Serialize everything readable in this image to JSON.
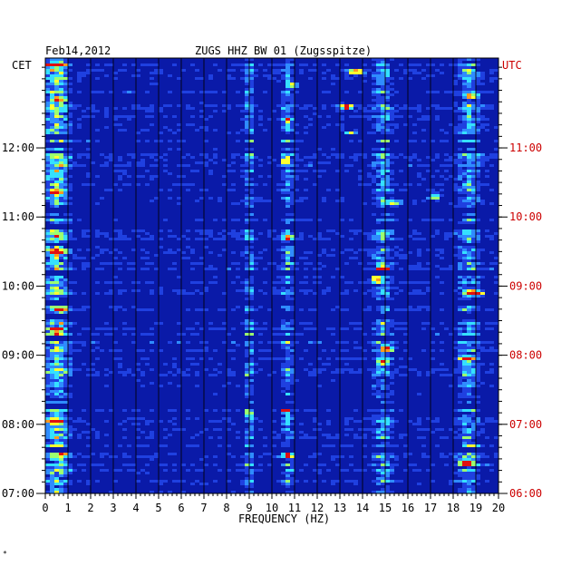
{
  "header": {
    "date": "Feb14,2012",
    "station": "ZUGS HHZ BW 01 (Zugsspitze)"
  },
  "left_zone_label": "CET",
  "right_zone_label": "UTC",
  "corner_mark": "*",
  "colors": {
    "background": "#ffffff",
    "utc_text": "#cc0000",
    "spectrogram_base": "#0a1aa8",
    "gridline": "#000000"
  },
  "chart_data": {
    "type": "heatmap",
    "xlabel": "FREQUENCY (HZ)",
    "xlim": [
      0,
      20
    ],
    "x_ticks": [
      0,
      1,
      2,
      3,
      4,
      5,
      6,
      7,
      8,
      9,
      10,
      11,
      12,
      13,
      14,
      15,
      16,
      17,
      18,
      19,
      20
    ],
    "x_tick_labels": [
      "0",
      "1",
      "2",
      "3",
      "4",
      "5",
      "6",
      "7",
      "8",
      "9",
      "10",
      "11",
      "12",
      "13",
      "14",
      "15",
      "16",
      "17",
      "18",
      "19",
      "20"
    ],
    "time_range_cet_hours": [
      7.0,
      13.3
    ],
    "cet_ticks": [
      {
        "hour": 7,
        "label": "07:00"
      },
      {
        "hour": 8,
        "label": "08:00"
      },
      {
        "hour": 9,
        "label": "09:00"
      },
      {
        "hour": 10,
        "label": "10:00"
      },
      {
        "hour": 11,
        "label": "11:00"
      },
      {
        "hour": 12,
        "label": "12:00"
      }
    ],
    "utc_ticks": [
      {
        "hour": 7,
        "label": "06:00"
      },
      {
        "hour": 8,
        "label": "07:00"
      },
      {
        "hour": 9,
        "label": "08:00"
      },
      {
        "hour": 10,
        "label": "09:00"
      },
      {
        "hour": 11,
        "label": "10:00"
      },
      {
        "hour": 12,
        "label": "11:00"
      }
    ],
    "colormap": [
      "#08108f",
      "#0a1aa8",
      "#1f40e0",
      "#2f8cff",
      "#35e0ff",
      "#9cff70",
      "#ffff30",
      "#ff9a20",
      "#e01010"
    ],
    "persistent_bands_hz": [
      {
        "center": 0.5,
        "width": 0.8,
        "intensity": 0.55
      },
      {
        "center": 9.0,
        "width": 0.3,
        "intensity": 0.35
      },
      {
        "center": 10.7,
        "width": 0.4,
        "intensity": 0.32
      },
      {
        "center": 14.9,
        "width": 0.6,
        "intensity": 0.35
      },
      {
        "center": 18.7,
        "width": 0.7,
        "intensity": 0.35
      }
    ],
    "bursts": [
      {
        "hour": 7.45,
        "f": 18.6,
        "df": 0.5,
        "intensity": 0.95
      },
      {
        "hour": 7.65,
        "f": 18.9,
        "df": 0.5,
        "intensity": 0.95
      },
      {
        "hour": 7.55,
        "f": 10.7,
        "df": 0.3,
        "intensity": 0.8
      },
      {
        "hour": 7.6,
        "f": 0.7,
        "df": 0.6,
        "intensity": 0.85
      },
      {
        "hour": 8.05,
        "f": 0.4,
        "df": 0.5,
        "intensity": 0.85
      },
      {
        "hour": 8.15,
        "f": 9.0,
        "df": 0.3,
        "intensity": 0.8
      },
      {
        "hour": 8.2,
        "f": 10.6,
        "df": 0.3,
        "intensity": 0.75
      },
      {
        "hour": 8.9,
        "f": 14.9,
        "df": 0.4,
        "intensity": 0.8
      },
      {
        "hour": 8.95,
        "f": 18.6,
        "df": 0.5,
        "intensity": 0.85
      },
      {
        "hour": 9.1,
        "f": 15.1,
        "df": 0.4,
        "intensity": 0.75
      },
      {
        "hour": 9.35,
        "f": 0.5,
        "df": 0.5,
        "intensity": 0.8
      },
      {
        "hour": 9.65,
        "f": 0.7,
        "df": 0.4,
        "intensity": 0.85
      },
      {
        "hour": 9.9,
        "f": 18.9,
        "df": 0.6,
        "intensity": 0.75
      },
      {
        "hour": 10.1,
        "f": 14.6,
        "df": 0.4,
        "intensity": 0.9
      },
      {
        "hour": 10.25,
        "f": 14.9,
        "df": 0.4,
        "intensity": 0.8
      },
      {
        "hour": 10.5,
        "f": 0.5,
        "df": 0.5,
        "intensity": 0.8
      },
      {
        "hour": 10.7,
        "f": 10.7,
        "df": 0.3,
        "intensity": 0.7
      },
      {
        "hour": 11.2,
        "f": 15.4,
        "df": 0.5,
        "intensity": 0.8
      },
      {
        "hour": 11.3,
        "f": 17.2,
        "df": 0.4,
        "intensity": 0.8
      },
      {
        "hour": 11.35,
        "f": 0.5,
        "df": 0.5,
        "intensity": 0.85
      },
      {
        "hour": 11.8,
        "f": 10.6,
        "df": 0.3,
        "intensity": 0.8
      },
      {
        "hour": 12.2,
        "f": 13.5,
        "df": 0.4,
        "intensity": 0.75
      },
      {
        "hour": 12.4,
        "f": 10.7,
        "df": 0.3,
        "intensity": 0.8
      },
      {
        "hour": 12.6,
        "f": 13.3,
        "df": 0.5,
        "intensity": 0.8
      },
      {
        "hour": 12.7,
        "f": 0.6,
        "df": 0.5,
        "intensity": 0.9
      },
      {
        "hour": 12.75,
        "f": 18.8,
        "df": 0.5,
        "intensity": 0.8
      },
      {
        "hour": 12.9,
        "f": 10.9,
        "df": 0.3,
        "intensity": 0.7
      },
      {
        "hour": 13.1,
        "f": 13.7,
        "df": 0.5,
        "intensity": 0.75
      },
      {
        "hour": 13.2,
        "f": 0.5,
        "df": 0.6,
        "intensity": 0.85
      }
    ],
    "quiet_rows_hours": [
      7.62,
      8.25,
      8.35,
      9.25,
      9.55,
      9.75,
      9.78,
      10.18,
      10.6,
      10.85,
      11.0,
      11.1,
      11.95,
      12.05,
      12.15
    ]
  }
}
